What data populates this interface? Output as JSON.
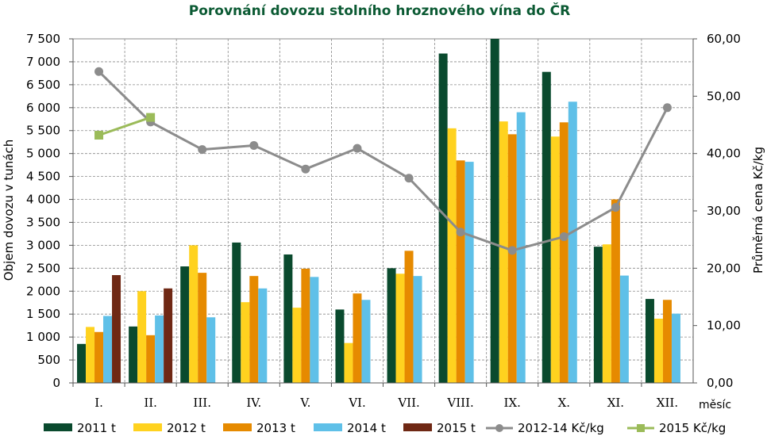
{
  "chart_data": {
    "type": "bar+line",
    "title": "Porovnání dovozu stolního hroznového vína do ČR",
    "title_color": "#0b5a33",
    "xlabel": "měsíc",
    "ylabel_left": "Objem dovozu v tunách",
    "ylabel_right": "Průměrná cena Kč/kg",
    "ylim_left": [
      0,
      7500
    ],
    "ylim_right": [
      0,
      60
    ],
    "left_ticks": [
      "0",
      "500",
      "1 000",
      "1 500",
      "2 000",
      "2 500",
      "3 000",
      "3 500",
      "4 000",
      "4 500",
      "5 000",
      "5 500",
      "6 000",
      "6 500",
      "7 000",
      "7 500"
    ],
    "right_ticks": [
      "0,00",
      "10,00",
      "20,00",
      "30,00",
      "40,00",
      "50,00",
      "60,00"
    ],
    "grid": "dashed",
    "legend_position": "bottom",
    "categories": [
      "I.",
      "II.",
      "III.",
      "IV.",
      "V.",
      "VI.",
      "VII.",
      "VIII.",
      "IX.",
      "X.",
      "XI.",
      "XII."
    ],
    "bar_series": [
      {
        "name": "2011 t",
        "color": "#0a4a2e",
        "values": [
          850,
          1230,
          2540,
          3060,
          2800,
          1600,
          2500,
          7180,
          7500,
          6780,
          2970,
          1830
        ]
      },
      {
        "name": "2012 t",
        "color": "#ffd21f",
        "values": [
          1220,
          2000,
          3000,
          1760,
          1640,
          870,
          2380,
          5550,
          5700,
          5370,
          3020,
          1400
        ]
      },
      {
        "name": "2013 t",
        "color": "#e68a00",
        "values": [
          1110,
          1040,
          2400,
          2330,
          2490,
          1950,
          2880,
          4850,
          5420,
          5680,
          4000,
          1810
        ]
      },
      {
        "name": "2014 t",
        "color": "#5fc0e8",
        "values": [
          1460,
          1470,
          1430,
          2060,
          2310,
          1810,
          2330,
          4820,
          5900,
          6130,
          2340,
          1510
        ]
      },
      {
        "name": "2015 t",
        "color": "#6f2814",
        "values": [
          2350,
          2060,
          null,
          null,
          null,
          null,
          null,
          null,
          null,
          null,
          null,
          null
        ]
      }
    ],
    "line_series": [
      {
        "name": "2012-14 Kč/kg",
        "color": "#8c8c8c",
        "marker": "circle",
        "values": [
          54.3,
          45.5,
          40.7,
          41.4,
          37.3,
          40.9,
          35.7,
          26.3,
          23.1,
          25.5,
          30.6,
          48.0
        ]
      },
      {
        "name": "2015 Kč/kg",
        "color": "#9bbb59",
        "marker": "square",
        "values": [
          43.2,
          46.3,
          null,
          null,
          null,
          null,
          null,
          null,
          null,
          null,
          null,
          null
        ]
      }
    ]
  }
}
